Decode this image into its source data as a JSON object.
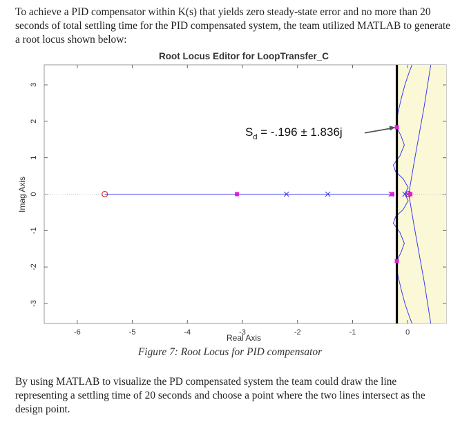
{
  "document": {
    "intro": "To achieve a PID compensator within K(s) that yields zero steady-state error and no more than 20 seconds of total settling time for the PID compensated system, the team utilized MATLAB to generate a root locus shown below:",
    "caption": "Figure 7: Root Locus for PID compensator",
    "outro": "By using MATLAB to visualize the PD compensated system the team could draw the line representing a settling time of 20 seconds and choose a point where the two lines intersect as the design point."
  },
  "chart_data": {
    "type": "scatter",
    "title": "Root Locus Editor for LoopTransfer_C",
    "xlabel": "Real Axis",
    "ylabel": "Imag Axis",
    "xlim": [
      -6.6,
      0.7
    ],
    "ylim": [
      -3.55,
      3.55
    ],
    "xticks": [
      -6,
      -5,
      -4,
      -3,
      -2,
      -1,
      0
    ],
    "yticks": [
      -3,
      -2,
      -1,
      0,
      1,
      2,
      3
    ],
    "grid": false,
    "boundary_line_x": -0.196,
    "shaded_region": {
      "x_from": -0.196,
      "color": "#fbf8d8"
    },
    "zeros": [
      {
        "re": -5.5,
        "im": 0
      },
      {
        "re": 0.02,
        "im": 0
      }
    ],
    "poles": [
      {
        "re": -2.2,
        "im": 0
      },
      {
        "re": -1.45,
        "im": 0
      },
      {
        "re": -0.3,
        "im": 0
      },
      {
        "re": -0.05,
        "im": 0
      },
      {
        "re": 0.0,
        "im": 0
      }
    ],
    "closed_loop_poles": [
      {
        "re": -3.1,
        "im": 0
      },
      {
        "re": -0.28,
        "im": 0
      },
      {
        "re": 0.05,
        "im": 0
      },
      {
        "re": -0.196,
        "im": 1.836
      },
      {
        "re": -0.196,
        "im": -1.836
      }
    ],
    "annotation": {
      "text": "S",
      "subscript": "d",
      "rest": " = -.196 ± 1.836j",
      "x": -2.95,
      "y": 1.6
    },
    "colors": {
      "locus": "#3a3af0",
      "zero": "#e03030",
      "pole": "#3a3af0",
      "cl_pole": "#e020d0",
      "boundary": "#000000"
    }
  }
}
